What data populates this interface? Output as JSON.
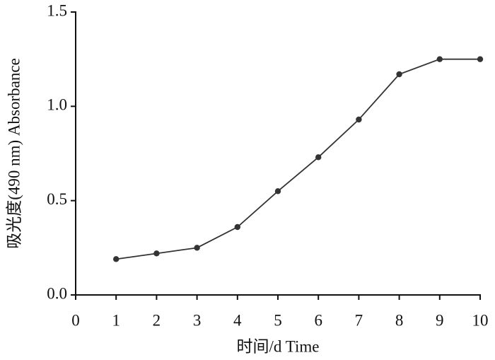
{
  "chart_data": {
    "type": "line",
    "x_label": "时间/d Time",
    "y_label": "吸光度(490 nm) Absorbance",
    "x": [
      1,
      2,
      3,
      4,
      5,
      6,
      7,
      8,
      9,
      10
    ],
    "series": [
      {
        "color": "#333333",
        "values": [
          0.19,
          0.22,
          0.25,
          0.36,
          0.55,
          0.73,
          0.93,
          1.17,
          1.25,
          1.25
        ]
      }
    ],
    "xlim": [
      0,
      10
    ],
    "xticks": [
      0,
      1,
      2,
      3,
      4,
      5,
      6,
      7,
      8,
      9,
      10
    ],
    "ylim": [
      0,
      1.5
    ],
    "yticks": [
      {
        "value": 0,
        "label": "0.0"
      },
      0.5,
      {
        "value": 1,
        "label": "1.0"
      },
      1.5
    ]
  }
}
